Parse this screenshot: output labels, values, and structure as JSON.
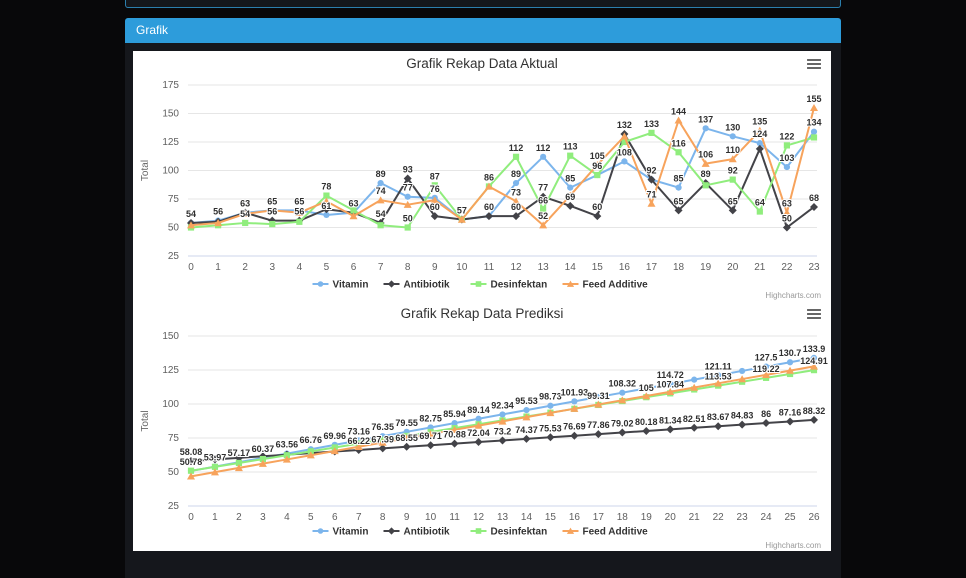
{
  "panel": {
    "title": "Grafik"
  },
  "colors": {
    "page_bg": "#08080a",
    "panel_header_bg": "#2d9cdb",
    "panel_body_bg": "#15171c",
    "remnant_border": "#2b7fae",
    "chart_bg": "#ffffff",
    "grid_line": "#e6e6e6",
    "axis_line": "#ccd6eb",
    "tick_label": "#606060",
    "axis_title": "#666666",
    "chart_title": "#333333",
    "data_label": "#2f2f2f",
    "legend_text": "#333333",
    "credits_text": "#999999",
    "burger_icon": "#666666"
  },
  "icons": {
    "chart_context_menu": "burger-menu-icon"
  },
  "chart_data": [
    {
      "type": "line",
      "title": "Grafik Rekap Data Aktual",
      "ylabel": "Total",
      "ylim": [
        25,
        175
      ],
      "yticks": [
        25,
        50,
        75,
        100,
        125,
        150,
        175
      ],
      "grid": true,
      "legend_position": "bottom",
      "credits": "Highcharts.com",
      "x": [
        0,
        1,
        2,
        3,
        4,
        5,
        6,
        7,
        8,
        9,
        10,
        11,
        12,
        13,
        14,
        15,
        16,
        17,
        18,
        19,
        20,
        21,
        22,
        23
      ],
      "series": [
        {
          "name": "Vitamin",
          "color": "#7cb5ec",
          "marker": "circle",
          "values": [
            54,
            56,
            63,
            65,
            65,
            61,
            63,
            89,
            77,
            76,
            57,
            60,
            89,
            112,
            85,
            96,
            108,
            92,
            85,
            137,
            130,
            124,
            103,
            134
          ]
        },
        {
          "name": "Antibiotik",
          "color": "#434348",
          "marker": "diamond",
          "values": [
            54,
            55,
            63,
            56,
            56,
            66,
            63,
            54,
            93,
            60,
            57,
            60,
            60,
            77,
            69,
            60,
            132,
            92,
            65,
            89,
            65,
            119,
            50,
            68
          ]
        },
        {
          "name": "Desinfektan",
          "color": "#90ed7d",
          "marker": "square",
          "values": [
            50,
            52,
            54,
            53,
            55,
            78,
            65,
            52,
            50,
            87,
            57,
            86,
            112,
            66,
            113,
            96,
            125,
            133,
            116,
            87,
            92,
            64,
            122,
            129
          ]
        },
        {
          "name": "Feed Additive",
          "color": "#f7a35c",
          "marker": "triangle",
          "values": [
            52,
            54,
            62,
            65,
            63,
            73,
            60,
            74,
            70,
            74,
            57,
            86,
            73,
            52,
            78,
            105,
            130,
            71,
            144,
            106,
            110,
            135,
            63,
            155
          ]
        }
      ]
    },
    {
      "type": "line",
      "title": "Grafik Rekap Data Prediksi",
      "ylabel": "Total",
      "ylim": [
        25,
        150
      ],
      "yticks": [
        25,
        50,
        75,
        100,
        125,
        150
      ],
      "grid": true,
      "legend_position": "bottom",
      "credits": "Highcharts.com",
      "x": [
        0,
        1,
        2,
        3,
        4,
        5,
        6,
        7,
        8,
        9,
        10,
        11,
        12,
        13,
        14,
        15,
        16,
        17,
        18,
        19,
        20,
        21,
        22,
        23,
        24,
        25,
        26
      ],
      "series": [
        {
          "name": "Vitamin",
          "color": "#7cb5ec",
          "marker": "circle",
          "values": [
            50.78,
            53.97,
            57.17,
            60.37,
            63.56,
            66.76,
            69.96,
            73.16,
            76.35,
            79.55,
            82.75,
            85.94,
            89.14,
            92.34,
            95.53,
            98.73,
            101.93,
            105.12,
            108.32,
            111.52,
            114.72,
            117.91,
            121.11,
            124.31,
            127.5,
            130.7,
            133.9
          ]
        },
        {
          "name": "Antibiotik",
          "color": "#434348",
          "marker": "diamond",
          "values": [
            58.08,
            59.24,
            60.41,
            61.57,
            62.73,
            63.9,
            65.06,
            66.22,
            67.39,
            68.55,
            69.71,
            70.88,
            72.04,
            73.2,
            74.37,
            75.53,
            76.69,
            77.86,
            79.02,
            80.18,
            81.34,
            82.51,
            83.67,
            84.83,
            86,
            87.16,
            88.32
          ]
        },
        {
          "name": "Desinfektan",
          "color": "#90ed7d",
          "marker": "square",
          "values": [
            50.95,
            53.8,
            56.64,
            59.49,
            62.33,
            65.18,
            68.02,
            70.87,
            73.71,
            76.56,
            79.4,
            82.25,
            85.09,
            87.94,
            90.78,
            93.62,
            96.47,
            99.31,
            102.16,
            105,
            107.84,
            110.69,
            113.53,
            116.38,
            119.22,
            122.07,
            124.91
          ]
        },
        {
          "name": "Feed Additive",
          "color": "#f7a35c",
          "marker": "triangle",
          "values": [
            46.8,
            49.91,
            53.02,
            56.13,
            59.24,
            62.35,
            65.46,
            68.57,
            71.68,
            74.79,
            77.9,
            81.01,
            84.12,
            87.23,
            90.34,
            93.45,
            96.56,
            99.67,
            102.78,
            105.89,
            109,
            112.11,
            115.22,
            118.33,
            121.44,
            124.55,
            127.66
          ]
        }
      ]
    }
  ]
}
